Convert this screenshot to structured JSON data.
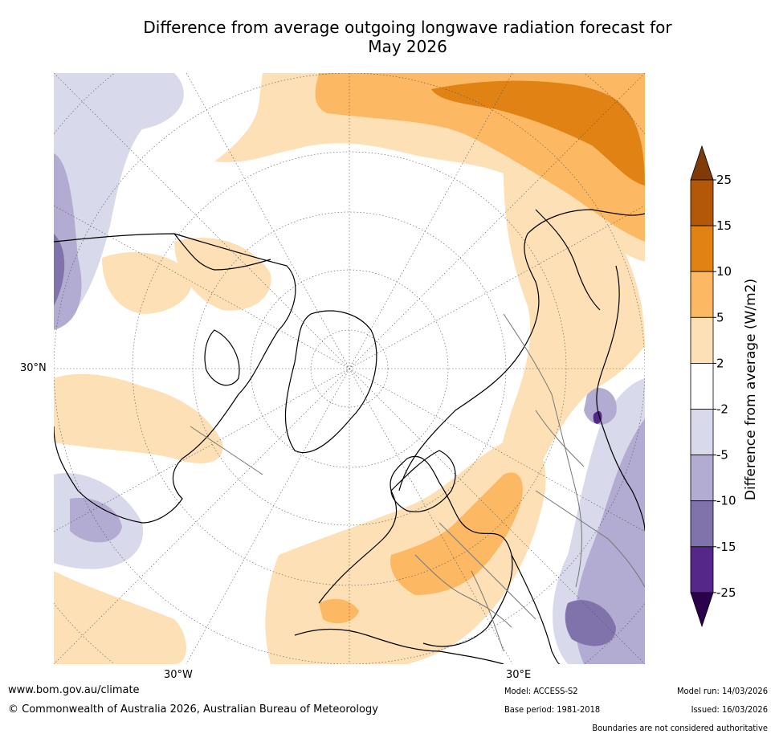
{
  "title_line1": "Difference from average outgoing longwave radiation forecast for",
  "title_line2": "May 2026",
  "map": {
    "lat_label": "30°N",
    "lon_label_west": "30°W",
    "lon_label_east": "30°E",
    "regions": {
      "north_pacific_positive": "5 to 15",
      "east_asia_positive": "2 to 15",
      "north_atlantic_positive": "2 to 5",
      "europe_positive": "2 to 10",
      "mediterranean_positive": "2 to 10",
      "north_africa_positive": "2 to 5",
      "arctic": "-2 to 2",
      "central_asia_negative": "-2 to -15",
      "pacific_east_negative": "-2 to -10",
      "atlantic_west_negative": "-2 to -10"
    }
  },
  "colorbar": {
    "title": "Difference from average (W/m2)",
    "ticks": [
      "25",
      "15",
      "10",
      "5",
      "2",
      "-2",
      "-5",
      "-10",
      "-15",
      "-25"
    ],
    "bins": [
      {
        "range": "15 to 25",
        "color": "#b35806"
      },
      {
        "range": "10 to 15",
        "color": "#e08214"
      },
      {
        "range": "5 to 10",
        "color": "#fdb863"
      },
      {
        "range": "2 to 5",
        "color": "#fee0b6"
      },
      {
        "range": "-2 to 2",
        "color": "#ffffff"
      },
      {
        "range": "-5 to -2",
        "color": "#d8daeb"
      },
      {
        "range": "-10 to -5",
        "color": "#b2abd2"
      },
      {
        "range": "-15 to -10",
        "color": "#8073ac"
      },
      {
        "range": "-25 to -15",
        "color": "#542788"
      }
    ],
    "over_color": "#7f3b08",
    "under_color": "#2d004b"
  },
  "footer": {
    "website": "www.bom.gov.au/climate",
    "copyright": "© Commonwealth of Australia 2026, Australian Bureau of Meteorology",
    "model": "Model: ACCESS-S2",
    "model_run": "Model run: 14/03/2026",
    "base_period": "Base period: 1981-2018",
    "issued": "Issued: 16/03/2026",
    "disclaimer": "Boundaries are not considered authoritative"
  }
}
